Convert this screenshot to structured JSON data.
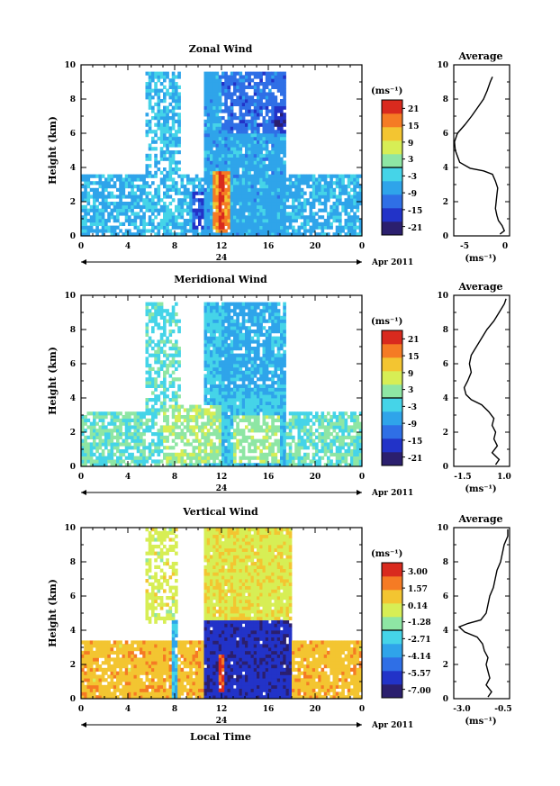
{
  "common": {
    "x_ticks": [
      "0",
      "4",
      "8",
      "12",
      "16",
      "20",
      "0"
    ],
    "y_ticks": [
      "0",
      "2",
      "4",
      "6",
      "8",
      "10"
    ],
    "y_label": "Height (km)",
    "day_marker": "24",
    "date_label": "Apr 2011",
    "x_label": "Local Time",
    "colorbar_unit": "(ms⁻¹)"
  },
  "colors": {
    "background": "#ffffff",
    "axis": "#000000",
    "colormap": [
      "#2b1f6e",
      "#2233c8",
      "#2f6fe6",
      "#2fa4ea",
      "#45d4e8",
      "#8ee6a4",
      "#d7ee55",
      "#f3c531",
      "#f57b24",
      "#d92a1e"
    ]
  },
  "chart_data": [
    {
      "type": "heatmap",
      "title": "Zonal Wind",
      "xlabel": "",
      "ylabel": "Height (km)",
      "xlim": [
        0,
        24
      ],
      "ylim": [
        0,
        10
      ],
      "colorbar": {
        "labels": [
          "21",
          "15",
          "9",
          "3",
          "-3",
          "-9",
          "-15",
          "-21"
        ],
        "range": [
          -24,
          24
        ]
      },
      "profile": {
        "title": "Average",
        "x_ticks": [
          "-5",
          "0"
        ],
        "xlim": [
          -7,
          0.5
        ],
        "unit": "(ms⁻¹)",
        "points": [
          [
            -0.8,
            0.1
          ],
          [
            -0.2,
            0.3
          ],
          [
            -0.5,
            0.6
          ],
          [
            -1.0,
            0.9
          ],
          [
            -1.2,
            1.2
          ],
          [
            -1.4,
            1.6
          ],
          [
            -1.3,
            2.0
          ],
          [
            -1.2,
            2.4
          ],
          [
            -1.1,
            2.8
          ],
          [
            -1.4,
            3.2
          ],
          [
            -1.8,
            3.6
          ],
          [
            -3.0,
            3.8
          ],
          [
            -4.8,
            3.95
          ],
          [
            -6.2,
            4.3
          ],
          [
            -6.8,
            5.0
          ],
          [
            -6.9,
            5.5
          ],
          [
            -6.5,
            6.0
          ],
          [
            -5.5,
            6.5
          ],
          [
            -4.6,
            7.0
          ],
          [
            -3.8,
            7.5
          ],
          [
            -3.0,
            8.0
          ],
          [
            -2.5,
            8.5
          ],
          [
            -2.1,
            9.0
          ],
          [
            -1.8,
            9.3
          ]
        ]
      },
      "regions": [
        {
          "x": [
            0,
            24
          ],
          "y": [
            0,
            3.5
          ],
          "v": -6,
          "d": 0.78
        },
        {
          "x": [
            5.5,
            8.5
          ],
          "y": [
            0,
            9.6
          ],
          "v": -5,
          "d": 0.65
        },
        {
          "x": [
            10.5,
            17.5
          ],
          "y": [
            0,
            9.6
          ],
          "v": -7,
          "d": 0.97
        },
        {
          "x": [
            12,
            17.5
          ],
          "y": [
            6,
            9.6
          ],
          "v": -12,
          "d": 0.8
        },
        {
          "x": [
            16.5,
            17.5
          ],
          "y": [
            6.2,
            7.5
          ],
          "v": -18,
          "d": 0.9
        },
        {
          "x": [
            11.3,
            12.7
          ],
          "y": [
            0.3,
            3.9
          ],
          "v": 15,
          "d": 0.95
        },
        {
          "x": [
            11.7,
            12.3
          ],
          "y": [
            0.5,
            3.7
          ],
          "v": 21,
          "d": 0.95
        },
        {
          "x": [
            9.5,
            10.5
          ],
          "y": [
            0.5,
            2.5
          ],
          "v": -15,
          "d": 0.7
        }
      ]
    },
    {
      "type": "heatmap",
      "title": "Meridional Wind",
      "xlabel": "",
      "ylabel": "Height (km)",
      "xlim": [
        0,
        24
      ],
      "ylim": [
        0,
        10
      ],
      "colorbar": {
        "labels": [
          "21",
          "15",
          "9",
          "3",
          "-3",
          "-9",
          "-15",
          "-21"
        ],
        "range": [
          -24,
          24
        ]
      },
      "profile": {
        "title": "Average",
        "x_ticks": [
          "-1.5",
          "1.0"
        ],
        "xlim": [
          -2.0,
          1.2
        ],
        "unit": "(ms⁻¹)",
        "points": [
          [
            0.4,
            0.1
          ],
          [
            0.6,
            0.4
          ],
          [
            0.2,
            0.8
          ],
          [
            0.5,
            1.2
          ],
          [
            0.3,
            1.6
          ],
          [
            0.4,
            2.0
          ],
          [
            0.2,
            2.4
          ],
          [
            0.3,
            2.8
          ],
          [
            0.0,
            3.2
          ],
          [
            -0.4,
            3.6
          ],
          [
            -1.0,
            3.9
          ],
          [
            -1.3,
            4.2
          ],
          [
            -1.4,
            4.6
          ],
          [
            -1.2,
            5.0
          ],
          [
            -1.0,
            5.5
          ],
          [
            -1.1,
            6.0
          ],
          [
            -1.0,
            6.5
          ],
          [
            -0.7,
            7.0
          ],
          [
            -0.4,
            7.5
          ],
          [
            -0.1,
            8.0
          ],
          [
            0.3,
            8.5
          ],
          [
            0.6,
            9.0
          ],
          [
            0.9,
            9.5
          ],
          [
            1.0,
            9.8
          ]
        ]
      },
      "regions": [
        {
          "x": [
            0,
            24
          ],
          "y": [
            0,
            3.3
          ],
          "v": 0,
          "d": 0.75
        },
        {
          "x": [
            5.5,
            8.5
          ],
          "y": [
            0,
            9.6
          ],
          "v": -1,
          "d": 0.6
        },
        {
          "x": [
            10.5,
            17.5
          ],
          "y": [
            0,
            9.6
          ],
          "v": -4,
          "d": 0.97
        },
        {
          "x": [
            12,
            17.5
          ],
          "y": [
            4.5,
            9.6
          ],
          "v": -6,
          "d": 0.85
        },
        {
          "x": [
            7,
            12
          ],
          "y": [
            0.3,
            3.5
          ],
          "v": 4,
          "d": 0.7
        },
        {
          "x": [
            13,
            17
          ],
          "y": [
            0.3,
            3
          ],
          "v": 3,
          "d": 0.7
        }
      ]
    },
    {
      "type": "heatmap",
      "title": "Vertical Wind",
      "xlabel": "Local Time",
      "ylabel": "Height (km)",
      "xlim": [
        0,
        24
      ],
      "ylim": [
        0,
        10
      ],
      "colorbar": {
        "labels": [
          "3.00",
          "1.57",
          "0.14",
          "-1.28",
          "-2.71",
          "-4.14",
          "-5.57",
          "-7.00"
        ],
        "range": [
          -8.42,
          3.72
        ]
      },
      "profile": {
        "title": "Average",
        "x_ticks": [
          "-3.0",
          "-0.5"
        ],
        "xlim": [
          -3.3,
          -0.2
        ],
        "unit": "(ms⁻¹)",
        "points": [
          [
            -1.4,
            0.1
          ],
          [
            -1.2,
            0.4
          ],
          [
            -1.5,
            0.8
          ],
          [
            -1.3,
            1.2
          ],
          [
            -1.4,
            1.6
          ],
          [
            -1.5,
            2.0
          ],
          [
            -1.4,
            2.4
          ],
          [
            -1.6,
            2.8
          ],
          [
            -1.7,
            3.2
          ],
          [
            -2.0,
            3.6
          ],
          [
            -2.7,
            3.9
          ],
          [
            -3.0,
            4.2
          ],
          [
            -2.5,
            4.4
          ],
          [
            -1.8,
            4.6
          ],
          [
            -1.5,
            5.0
          ],
          [
            -1.4,
            5.5
          ],
          [
            -1.3,
            6.0
          ],
          [
            -1.1,
            6.5
          ],
          [
            -1.0,
            7.0
          ],
          [
            -0.9,
            7.5
          ],
          [
            -0.7,
            8.0
          ],
          [
            -0.6,
            8.5
          ],
          [
            -0.5,
            9.0
          ],
          [
            -0.3,
            9.5
          ],
          [
            -0.3,
            9.9
          ]
        ]
      },
      "regions": [
        {
          "x": [
            0,
            24
          ],
          "y": [
            0,
            3.4
          ],
          "v": 0.8,
          "d": 0.88
        },
        {
          "x": [
            5.5,
            8.3
          ],
          "y": [
            4.5,
            10
          ],
          "v": -0.5,
          "d": 0.55
        },
        {
          "x": [
            10.5,
            18
          ],
          "y": [
            4.6,
            10
          ],
          "v": -0.2,
          "d": 0.97
        },
        {
          "x": [
            10.5,
            18
          ],
          "y": [
            0.1,
            4.5
          ],
          "v": -6.8,
          "d": 0.98
        },
        {
          "x": [
            11.7,
            12.3
          ],
          "y": [
            0.5,
            2.5
          ],
          "v": 2.8,
          "d": 0.95
        },
        {
          "x": [
            7.8,
            8.3
          ],
          "y": [
            0,
            4.5
          ],
          "v": -3.5,
          "d": 0.9
        }
      ]
    }
  ]
}
